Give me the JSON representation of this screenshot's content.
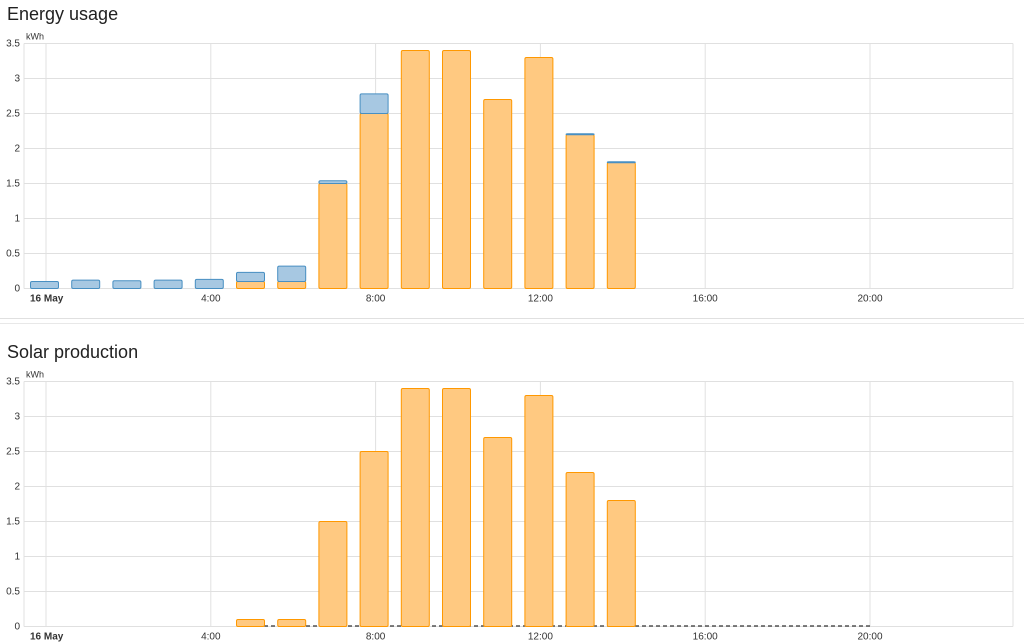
{
  "colors": {
    "solar_fill": "#ffc981",
    "solar_stroke": "#ff9800",
    "grid_fill": "#a7c8e2",
    "grid_stroke": "#488fc2",
    "return_line": "#333333"
  },
  "chart_data": [
    {
      "type": "bar",
      "title": "Energy usage",
      "ylabel": "kWh",
      "ylim": [
        0,
        3.5
      ],
      "yticks": [
        "0",
        "0.5",
        "1",
        "1.5",
        "2",
        "2.5",
        "3",
        "3.5"
      ],
      "xticks": [
        "16 May",
        "4:00",
        "8:00",
        "12:00",
        "16:00",
        "20:00"
      ],
      "stacked": true,
      "categories": [
        "0:00",
        "1:00",
        "2:00",
        "3:00",
        "4:00",
        "5:00",
        "6:00",
        "7:00",
        "8:00",
        "9:00",
        "10:00",
        "11:00",
        "12:00",
        "13:00",
        "14:00"
      ],
      "series": [
        {
          "key": "solar",
          "values": [
            0,
            0,
            0,
            0,
            0,
            0.1,
            0.1,
            1.5,
            2.5,
            3.4,
            3.4,
            2.7,
            3.3,
            2.2,
            1.8
          ]
        },
        {
          "key": "grid",
          "values": [
            0.1,
            0.12,
            0.11,
            0.12,
            0.13,
            0.13,
            0.22,
            0.04,
            0.28,
            0,
            0,
            0,
            0,
            0.01,
            0.01
          ]
        }
      ]
    },
    {
      "type": "bar",
      "title": "Solar production",
      "ylabel": "kWh",
      "ylim": [
        0,
        3.5
      ],
      "yticks": [
        "0",
        "0.5",
        "1",
        "1.5",
        "2",
        "2.5",
        "3",
        "3.5"
      ],
      "xticks": [
        "16 May",
        "4:00",
        "8:00",
        "12:00",
        "16:00",
        "20:00"
      ],
      "categories": [
        "0:00",
        "1:00",
        "2:00",
        "3:00",
        "4:00",
        "5:00",
        "6:00",
        "7:00",
        "8:00",
        "9:00",
        "10:00",
        "11:00",
        "12:00",
        "13:00",
        "14:00"
      ],
      "series": [
        {
          "key": "solar",
          "values": [
            0,
            0,
            0,
            0,
            0,
            0.1,
            0.1,
            1.5,
            2.5,
            3.4,
            3.4,
            2.7,
            3.3,
            2.2,
            1.8
          ]
        }
      ],
      "dashed_baseline_hours": [
        5,
        20
      ]
    }
  ]
}
